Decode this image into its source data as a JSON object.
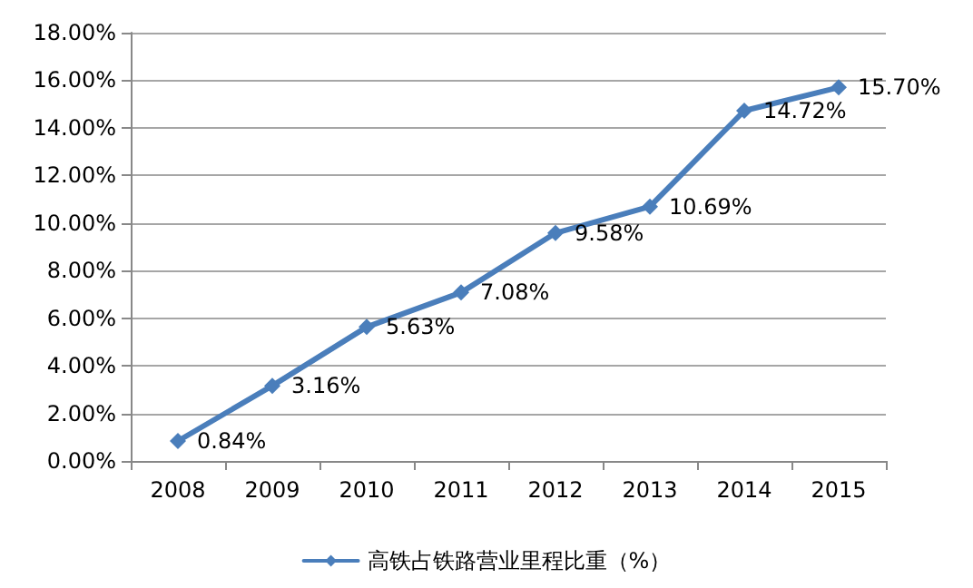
{
  "chart_data": {
    "type": "line",
    "categories": [
      "2008",
      "2009",
      "2010",
      "2011",
      "2012",
      "2013",
      "2014",
      "2015"
    ],
    "series": [
      {
        "name": "高铁占铁路营业里程比重（%）",
        "color": "#4a7ebb",
        "values": [
          0.84,
          3.16,
          5.63,
          7.08,
          9.58,
          10.69,
          14.72,
          15.7
        ],
        "value_labels": [
          "0.84%",
          "3.16%",
          "5.63%",
          "7.08%",
          "9.58%",
          "10.69%",
          "14.72%",
          "15.70%"
        ]
      }
    ],
    "ylim": [
      0,
      18
    ],
    "yticks": [
      {
        "value": 0,
        "label": "0.00%"
      },
      {
        "value": 2,
        "label": "2.00%"
      },
      {
        "value": 4,
        "label": "4.00%"
      },
      {
        "value": 6,
        "label": "6.00%"
      },
      {
        "value": 8,
        "label": "8.00%"
      },
      {
        "value": 10,
        "label": "10.00%"
      },
      {
        "value": 12,
        "label": "12.00%"
      },
      {
        "value": 14,
        "label": "14.00%"
      },
      {
        "value": 16,
        "label": "16.00%"
      },
      {
        "value": 18,
        "label": "18.00%"
      }
    ],
    "grid": "y",
    "legend": "bottom",
    "marker": "diamond",
    "line_style": "solid"
  }
}
